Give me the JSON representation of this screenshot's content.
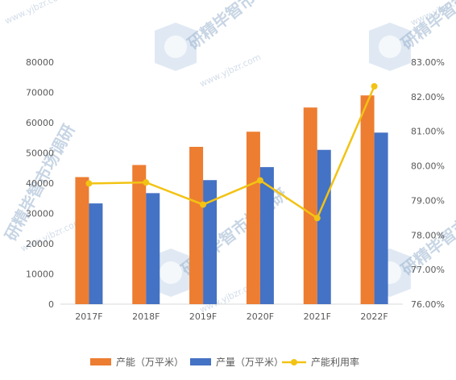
{
  "chart_data": {
    "type": "bar",
    "categories": [
      "2017F",
      "2018F",
      "2019F",
      "2020F",
      "2021F",
      "2022F"
    ],
    "series": [
      {
        "name": "产能（万平米）",
        "type": "bar",
        "axis": "left",
        "color": "#ed7d31",
        "values": [
          42000,
          46000,
          52000,
          57000,
          65000,
          69000
        ]
      },
      {
        "name": "产量（万平米）",
        "type": "bar",
        "axis": "left",
        "color": "#4472c4",
        "values": [
          33300,
          36700,
          41000,
          45300,
          51000,
          56700
        ]
      },
      {
        "name": "产能利用率",
        "type": "line",
        "axis": "right",
        "color": "#f2c314",
        "values": [
          79.49,
          79.52,
          78.88,
          79.58,
          78.49,
          82.3
        ]
      }
    ],
    "left_axis": {
      "min": 0,
      "max": 80000,
      "step": 10000,
      "ticks": [
        "0",
        "10000",
        "20000",
        "30000",
        "40000",
        "50000",
        "60000",
        "70000",
        "80000"
      ]
    },
    "right_axis": {
      "min": 76,
      "max": 83,
      "step": 1,
      "ticks": [
        "76.00%",
        "77.00%",
        "78.00%",
        "79.00%",
        "80.00%",
        "81.00%",
        "82.00%",
        "83.00%"
      ]
    },
    "grid": false,
    "legend_position": "bottom"
  },
  "watermark": {
    "text": "研精毕智市场调研",
    "url": "www.yjbzr.com"
  }
}
